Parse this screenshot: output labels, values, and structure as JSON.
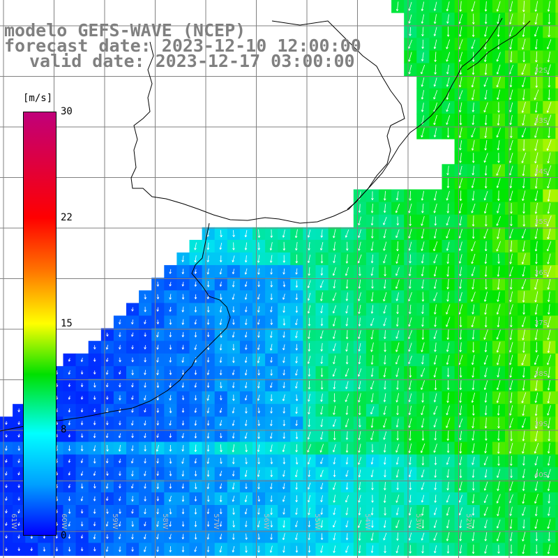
{
  "title": {
    "line1": "modelo GEFS-WAVE (NCEP)",
    "line2": "forecast date: 2023-12-10 12:00:00",
    "line3": "valid date: 2023-12-17 03:00:00"
  },
  "legend": {
    "unit": "[m/s]",
    "ticks": [
      "30",
      "22",
      "15",
      "8",
      "0"
    ],
    "colors": [
      "#c0007a",
      "#ff0000",
      "#ff7000",
      "#ffff00",
      "#00e000",
      "#00ffff",
      "#00a0ff",
      "#0000ff"
    ]
  },
  "grid_labels": {
    "lat": [
      "32S",
      "33S",
      "34S",
      "35S",
      "36S",
      "37S",
      "38S",
      "39S",
      "40S"
    ],
    "lon": [
      "61W",
      "60W",
      "59W",
      "58W",
      "57W",
      "56W",
      "55W",
      "54W",
      "53W",
      "52W"
    ]
  },
  "colors": {
    "land": "#ffffff",
    "coast": "#000000",
    "grid": "#808080",
    "arrows": "#ffffff"
  }
}
